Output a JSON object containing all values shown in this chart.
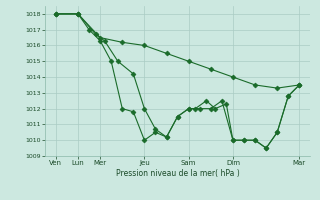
{
  "bg_color": "#cce8e0",
  "grid_color": "#aaccc4",
  "line_color": "#1a6b2a",
  "marker_color": "#1a6b2a",
  "ylabel_text": "Pression niveau de la mer( hPa )",
  "ylim": [
    1009,
    1018.5
  ],
  "yticks": [
    1009,
    1010,
    1011,
    1012,
    1013,
    1014,
    1015,
    1016,
    1017,
    1018
  ],
  "x_tick_positions": [
    0,
    1,
    2,
    4,
    6,
    8,
    11
  ],
  "x_tick_labels": [
    "Ven",
    "Lun",
    "Mer",
    "Jeu",
    "Sam",
    "Dim",
    "Mar"
  ],
  "series1": {
    "x": [
      0,
      1,
      2,
      3,
      4,
      5,
      6,
      7,
      8,
      9,
      10,
      11
    ],
    "y": [
      1018,
      1018,
      1016.5,
      1016.2,
      1016.0,
      1015.5,
      1015.0,
      1014.5,
      1014.0,
      1013.5,
      1013.3,
      1013.5
    ]
  },
  "series2": {
    "x": [
      0,
      1,
      1.8,
      2.2,
      2.8,
      3.5,
      4.0,
      4.5,
      5.0,
      5.5,
      6.0,
      6.5,
      7.0,
      7.5,
      8.0,
      8.5,
      9.0,
      9.5,
      10.0,
      10.5,
      11
    ],
    "y": [
      1018,
      1018,
      1016.7,
      1016.3,
      1015.0,
      1014.2,
      1012.0,
      1010.7,
      1010.2,
      1011.5,
      1012.0,
      1012.0,
      1012.0,
      1012.5,
      1010.0,
      1010.0,
      1010.0,
      1009.5,
      1010.5,
      1012.8,
      1013.5
    ]
  },
  "series3": {
    "x": [
      0,
      1,
      1.5,
      2.0,
      2.5,
      3.0,
      3.5,
      4.0,
      4.5,
      5.0,
      5.5,
      6.0,
      6.3,
      6.8,
      7.2,
      7.7,
      8.0,
      8.5,
      9.0,
      9.5,
      10.0,
      10.5,
      11
    ],
    "y": [
      1018,
      1018,
      1017.0,
      1016.3,
      1015.0,
      1012.0,
      1011.8,
      1010.0,
      1010.5,
      1010.2,
      1011.5,
      1012.0,
      1012.0,
      1012.5,
      1012.0,
      1012.3,
      1010.0,
      1010.0,
      1010.0,
      1009.5,
      1010.5,
      1012.8,
      1013.5
    ]
  }
}
